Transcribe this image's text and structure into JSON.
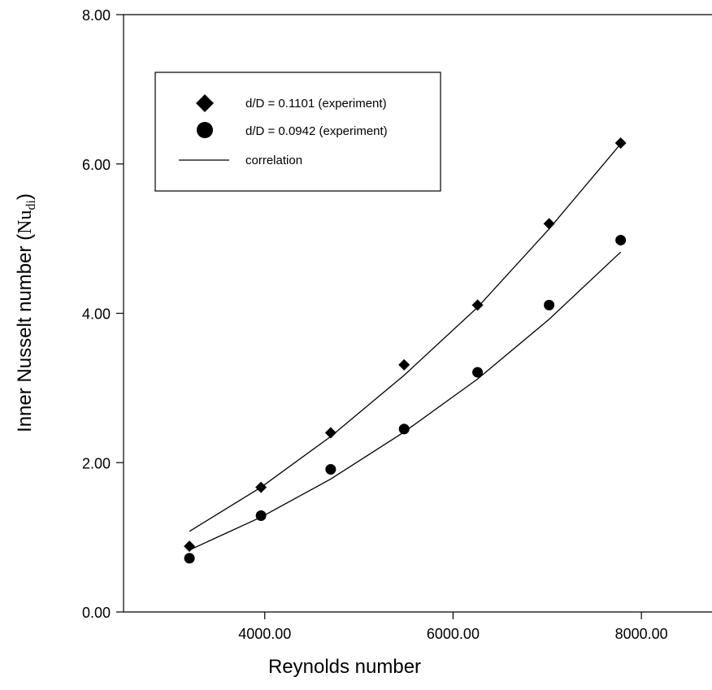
{
  "chart_data": {
    "type": "scatter",
    "title": "",
    "xlabel": "Reynolds number",
    "ylabel": {
      "prefix": "Inner Nusselt number (",
      "symbol": "Nu",
      "subscript": "di",
      "suffix": ")"
    },
    "xlim": [
      2500,
      8750
    ],
    "ylim": [
      0,
      8
    ],
    "xticks": [
      4000,
      6000,
      8000
    ],
    "xtick_labels": [
      "4000.00",
      "6000.00",
      "8000.00"
    ],
    "yticks": [
      0,
      2,
      4,
      6,
      8
    ],
    "ytick_labels": [
      "0.00",
      "2.00",
      "4.00",
      "6.00",
      "8.00"
    ],
    "grid": false,
    "legend_position": "top-left",
    "series": [
      {
        "name": "d/D = 0.1101 (experiment)",
        "marker": "diamond",
        "x": [
          3200,
          3960,
          4700,
          5480,
          6260,
          7020,
          7780
        ],
        "y": [
          0.88,
          1.67,
          2.4,
          3.31,
          4.11,
          5.2,
          6.28
        ]
      },
      {
        "name": "d/D = 0.0942 (experiment)",
        "marker": "circle",
        "x": [
          3200,
          3960,
          4700,
          5480,
          6260,
          7020,
          7780
        ],
        "y": [
          0.72,
          1.29,
          1.91,
          2.45,
          3.21,
          4.11,
          4.98
        ]
      }
    ],
    "correlation": {
      "name": "correlation",
      "lines": [
        {
          "x": [
            3200,
            3960,
            4700,
            5480,
            6260,
            7020,
            7780
          ],
          "y": [
            1.08,
            1.67,
            2.35,
            3.17,
            4.08,
            5.13,
            6.27
          ]
        },
        {
          "x": [
            3200,
            3960,
            4700,
            5480,
            6260,
            7020,
            7780
          ],
          "y": [
            0.83,
            1.27,
            1.78,
            2.41,
            3.12,
            3.92,
            4.82
          ]
        }
      ]
    },
    "colors": {
      "markers": "#000000",
      "lines": "#000000",
      "axes": "#000000"
    }
  }
}
